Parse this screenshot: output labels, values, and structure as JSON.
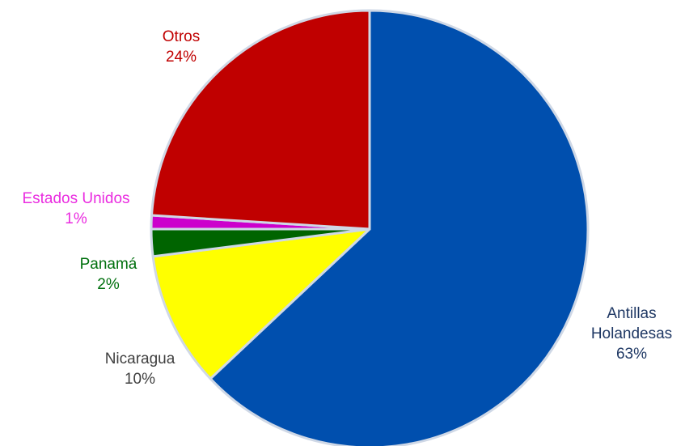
{
  "chart_data": {
    "type": "pie",
    "title": "",
    "start_angle_deg": 0,
    "direction": "clockwise",
    "slices": [
      {
        "name": "Antillas Holandesas",
        "value": 63,
        "label_lines": [
          "Antillas",
          "Holandesas",
          "63%"
        ],
        "color": "#004fae",
        "label_color": "#1f3864"
      },
      {
        "name": "Nicaragua",
        "value": 10,
        "label_lines": [
          "Nicaragua",
          "10%"
        ],
        "color": "#ffff00",
        "label_color": "#404040"
      },
      {
        "name": "Panamá",
        "value": 2,
        "label_lines": [
          "Panamá",
          "2%"
        ],
        "color": "#006400",
        "label_color": "#00700e"
      },
      {
        "name": "Estados Unidos",
        "value": 1,
        "label_lines": [
          "Estados Unidos",
          "1%"
        ],
        "color": "#cc00cc",
        "label_color": "#ea2ce0"
      },
      {
        "name": "Otros",
        "value": 24,
        "label_lines": [
          "Otros",
          "24%"
        ],
        "color": "#c00000",
        "label_color": "#c00000"
      }
    ]
  }
}
